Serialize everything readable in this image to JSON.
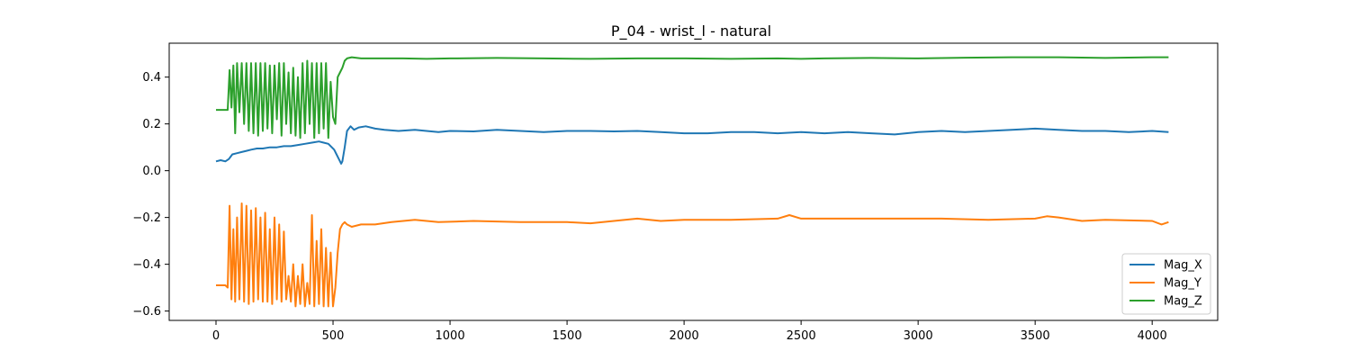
{
  "chart_data": {
    "type": "line",
    "title": "P_04 - wrist_l - natural",
    "xlabel": "",
    "ylabel": "",
    "xlim": [
      -200,
      4280
    ],
    "ylim": [
      -0.64,
      0.545
    ],
    "xticks": [
      0,
      500,
      1000,
      1500,
      2000,
      2500,
      3000,
      3500,
      4000
    ],
    "xtick_labels": [
      "0",
      "500",
      "1000",
      "1500",
      "2000",
      "2500",
      "3000",
      "3500",
      "4000"
    ],
    "yticks": [
      -0.6,
      -0.4,
      -0.2,
      0.0,
      0.2,
      0.4
    ],
    "ytick_labels": [
      "−0.6",
      "−0.4",
      "−0.2",
      "0.0",
      "0.2",
      "0.4"
    ],
    "legend_position": "lower-right",
    "grid": false,
    "series": [
      {
        "name": "Mag_X",
        "color": "#1f77b4",
        "x": [
          0,
          20,
          40,
          55,
          70,
          90,
          110,
          130,
          150,
          175,
          200,
          230,
          260,
          290,
          320,
          350,
          380,
          410,
          440,
          460,
          480,
          495,
          505,
          515,
          525,
          535,
          540,
          550,
          560,
          575,
          590,
          610,
          640,
          680,
          720,
          780,
          850,
          900,
          950,
          1000,
          1100,
          1200,
          1300,
          1400,
          1500,
          1600,
          1700,
          1800,
          1900,
          2000,
          2100,
          2200,
          2300,
          2400,
          2500,
          2600,
          2700,
          2800,
          2900,
          3000,
          3100,
          3200,
          3300,
          3400,
          3500,
          3600,
          3700,
          3800,
          3900,
          4000,
          4070
        ],
        "y": [
          0.04,
          0.045,
          0.04,
          0.05,
          0.07,
          0.075,
          0.08,
          0.085,
          0.09,
          0.095,
          0.095,
          0.1,
          0.1,
          0.105,
          0.105,
          0.11,
          0.115,
          0.12,
          0.125,
          0.12,
          0.115,
          0.1,
          0.09,
          0.07,
          0.05,
          0.03,
          0.04,
          0.1,
          0.17,
          0.19,
          0.175,
          0.185,
          0.19,
          0.18,
          0.175,
          0.17,
          0.175,
          0.17,
          0.165,
          0.17,
          0.168,
          0.175,
          0.17,
          0.165,
          0.17,
          0.17,
          0.168,
          0.17,
          0.165,
          0.16,
          0.16,
          0.165,
          0.165,
          0.16,
          0.165,
          0.16,
          0.165,
          0.16,
          0.155,
          0.165,
          0.17,
          0.165,
          0.17,
          0.175,
          0.18,
          0.175,
          0.17,
          0.17,
          0.165,
          0.17,
          0.165
        ]
      },
      {
        "name": "Mag_Y",
        "color": "#ff7f0e",
        "x": [
          0,
          20,
          40,
          50,
          58,
          66,
          74,
          82,
          90,
          100,
          110,
          120,
          130,
          140,
          150,
          160,
          170,
          180,
          190,
          200,
          210,
          220,
          230,
          240,
          250,
          260,
          270,
          280,
          290,
          300,
          310,
          320,
          330,
          340,
          350,
          360,
          370,
          380,
          390,
          400,
          410,
          420,
          430,
          440,
          450,
          460,
          470,
          480,
          490,
          500,
          510,
          520,
          530,
          540,
          550,
          560,
          580,
          620,
          680,
          750,
          850,
          950,
          1100,
          1300,
          1500,
          1600,
          1700,
          1800,
          1900,
          2000,
          2200,
          2400,
          2450,
          2500,
          2700,
          2900,
          3100,
          3300,
          3500,
          3550,
          3600,
          3700,
          3800,
          4000,
          4040,
          4070
        ],
        "y": [
          -0.49,
          -0.49,
          -0.49,
          -0.5,
          -0.15,
          -0.55,
          -0.25,
          -0.56,
          -0.2,
          -0.55,
          -0.14,
          -0.56,
          -0.15,
          -0.57,
          -0.17,
          -0.56,
          -0.16,
          -0.55,
          -0.2,
          -0.56,
          -0.18,
          -0.56,
          -0.25,
          -0.57,
          -0.2,
          -0.55,
          -0.23,
          -0.56,
          -0.26,
          -0.55,
          -0.45,
          -0.56,
          -0.4,
          -0.58,
          -0.45,
          -0.57,
          -0.4,
          -0.58,
          -0.48,
          -0.57,
          -0.19,
          -0.58,
          -0.3,
          -0.57,
          -0.25,
          -0.58,
          -0.33,
          -0.58,
          -0.35,
          -0.58,
          -0.5,
          -0.35,
          -0.25,
          -0.23,
          -0.22,
          -0.23,
          -0.24,
          -0.23,
          -0.23,
          -0.22,
          -0.21,
          -0.22,
          -0.215,
          -0.22,
          -0.22,
          -0.225,
          -0.215,
          -0.205,
          -0.215,
          -0.21,
          -0.21,
          -0.205,
          -0.19,
          -0.205,
          -0.205,
          -0.205,
          -0.205,
          -0.21,
          -0.205,
          -0.195,
          -0.2,
          -0.215,
          -0.21,
          -0.215,
          -0.23,
          -0.22
        ]
      },
      {
        "name": "Mag_Z",
        "color": "#2ca02c",
        "x": [
          0,
          20,
          40,
          50,
          58,
          66,
          74,
          82,
          90,
          100,
          110,
          120,
          130,
          140,
          150,
          160,
          170,
          180,
          190,
          200,
          210,
          220,
          230,
          240,
          250,
          260,
          270,
          280,
          290,
          300,
          310,
          320,
          330,
          340,
          350,
          360,
          370,
          380,
          390,
          400,
          410,
          420,
          430,
          440,
          450,
          460,
          470,
          480,
          490,
          500,
          510,
          520,
          530,
          540,
          550,
          560,
          580,
          620,
          700,
          800,
          900,
          1000,
          1200,
          1400,
          1600,
          1800,
          2000,
          2200,
          2400,
          2500,
          2600,
          2800,
          3000,
          3200,
          3400,
          3600,
          3800,
          4000,
          4070
        ],
        "y": [
          0.26,
          0.26,
          0.26,
          0.26,
          0.43,
          0.27,
          0.45,
          0.16,
          0.46,
          0.25,
          0.46,
          0.2,
          0.46,
          0.17,
          0.46,
          0.16,
          0.46,
          0.15,
          0.46,
          0.17,
          0.46,
          0.18,
          0.45,
          0.16,
          0.45,
          0.22,
          0.46,
          0.15,
          0.46,
          0.2,
          0.42,
          0.16,
          0.44,
          0.15,
          0.4,
          0.14,
          0.46,
          0.16,
          0.47,
          0.2,
          0.46,
          0.14,
          0.46,
          0.16,
          0.46,
          0.18,
          0.46,
          0.14,
          0.38,
          0.23,
          0.2,
          0.4,
          0.42,
          0.44,
          0.47,
          0.48,
          0.485,
          0.48,
          0.48,
          0.48,
          0.478,
          0.48,
          0.482,
          0.48,
          0.478,
          0.48,
          0.48,
          0.478,
          0.48,
          0.478,
          0.48,
          0.482,
          0.48,
          0.483,
          0.485,
          0.485,
          0.482,
          0.485,
          0.485
        ]
      }
    ]
  }
}
